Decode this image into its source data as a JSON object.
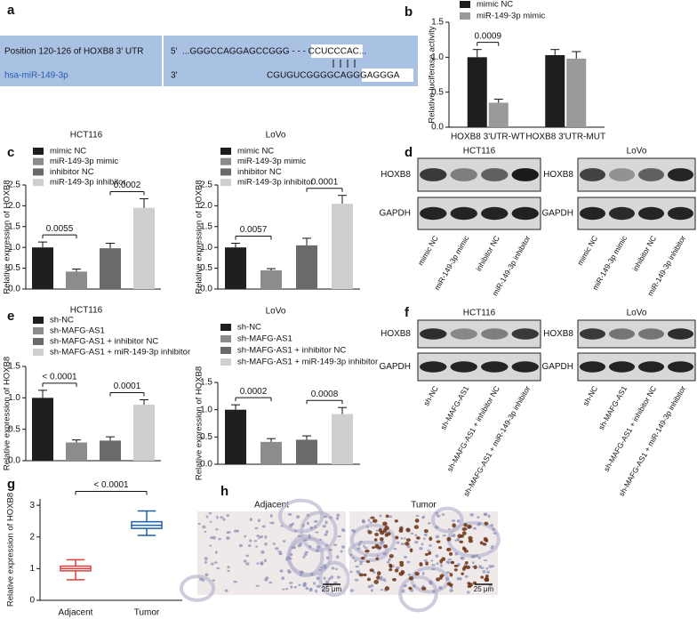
{
  "panel_a": {
    "label": "a",
    "position": "Position 120-126 of HOXB8 3' UTR",
    "mirna": "hsa-miR-149-3p",
    "five_prime": "5'",
    "three_prime": "3'",
    "target_seq": "...GGGCCAGGAGCCGGG - - - CCUCCCAC...",
    "mirna_seq": "CGUGUCGGGGCAGGGAGGGA"
  },
  "chart_data": [
    {
      "panel_label": "b",
      "type": "bar",
      "ylabel": "Relative luciferase activity",
      "categories": [
        "HOXB8 3'UTR-WT",
        "HOXB8 3'UTR-MUT"
      ],
      "series": [
        {
          "name": "mimic NC",
          "color": "#1e1e1e",
          "values": [
            1.0,
            1.03
          ],
          "errors": [
            0.11,
            0.08
          ]
        },
        {
          "name": "miR-149-3p mimic",
          "color": "#9a9a9a",
          "values": [
            0.35,
            0.98
          ],
          "errors": [
            0.05,
            0.1
          ]
        }
      ],
      "ylim": [
        0,
        1.5
      ],
      "yticks": [
        {
          "value": 0,
          "label": "0.0"
        },
        0.5,
        {
          "value": 1,
          "label": "1.0"
        },
        1.5
      ],
      "annotations": [
        "0.0009"
      ]
    },
    {
      "panel_label": "c",
      "type": "bar",
      "title": "HCT116",
      "ylabel": "Relative expression of HOXB8",
      "series": [
        {
          "name": "mimic NC",
          "color": "#1e1e1e",
          "values": [
            1.0
          ],
          "errors": [
            0.13
          ]
        },
        {
          "name": "miR-149-3p mimic",
          "color": "#8c8c8c",
          "values": [
            0.42
          ],
          "errors": [
            0.06
          ]
        },
        {
          "name": "inhibitor NC",
          "color": "#6a6a6a",
          "values": [
            0.98
          ],
          "errors": [
            0.12
          ]
        },
        {
          "name": "miR-149-3p inhibitor",
          "color": "#cfcfcf",
          "values": [
            1.95
          ],
          "errors": [
            0.22
          ]
        }
      ],
      "ylim": [
        0,
        2.5
      ],
      "yticks": [
        {
          "value": 0,
          "label": "0.0"
        },
        0.5,
        {
          "value": 1,
          "label": "1.0"
        },
        1.5,
        {
          "value": 2,
          "label": "2.0"
        },
        2.5
      ],
      "annotations": [
        "0.0055",
        "0.0002"
      ]
    },
    {
      "type": "bar",
      "title": "LoVo",
      "ylabel": "Relative expression of HOXB8",
      "series": [
        {
          "name": "mimic NC",
          "color": "#1e1e1e",
          "values": [
            1.0
          ],
          "errors": [
            0.1
          ]
        },
        {
          "name": "miR-149-3p mimic",
          "color": "#8c8c8c",
          "values": [
            0.45
          ],
          "errors": [
            0.04
          ]
        },
        {
          "name": "inhibitor NC",
          "color": "#6a6a6a",
          "values": [
            1.05
          ],
          "errors": [
            0.17
          ]
        },
        {
          "name": "miR-149-3p inhibitor",
          "color": "#cfcfcf",
          "values": [
            2.05
          ],
          "errors": [
            0.2
          ]
        }
      ],
      "ylim": [
        0,
        2.5
      ],
      "yticks": [
        {
          "value": 0,
          "label": "0.0"
        },
        0.5,
        {
          "value": 1,
          "label": "1.0"
        },
        1.5,
        {
          "value": 2,
          "label": "2.0"
        },
        2.5
      ],
      "annotations": [
        "0.0057",
        "0.0001"
      ]
    },
    {
      "panel_label": "e",
      "type": "bar",
      "title": "HCT116",
      "ylabel": "Relative expression of HOXB8",
      "series": [
        {
          "name": "sh-NC",
          "color": "#1e1e1e",
          "values": [
            1.0
          ],
          "errors": [
            0.12
          ]
        },
        {
          "name": "sh-MAFG-AS1",
          "color": "#8c8c8c",
          "values": [
            0.29
          ],
          "errors": [
            0.04
          ]
        },
        {
          "name": "sh-MAFG-AS1 + inhibitor NC",
          "color": "#6a6a6a",
          "values": [
            0.32
          ],
          "errors": [
            0.06
          ]
        },
        {
          "name": "sh-MAFG-AS1 + miR-149-3p inhibitor",
          "color": "#cfcfcf",
          "values": [
            0.89
          ],
          "errors": [
            0.08
          ]
        }
      ],
      "ylim": [
        0,
        1.5
      ],
      "yticks": [
        {
          "value": 0,
          "label": "0.0"
        },
        0.5,
        {
          "value": 1,
          "label": "1.0"
        },
        1.5
      ],
      "annotations": [
        "< 0.0001",
        "0.0001"
      ]
    },
    {
      "type": "bar",
      "title": "LoVo",
      "ylabel": "Relative expression of HOXB8",
      "series": [
        {
          "name": "sh-NC",
          "color": "#1e1e1e",
          "values": [
            1.0
          ],
          "errors": [
            0.09
          ]
        },
        {
          "name": "sh-MAFG-AS1",
          "color": "#8c8c8c",
          "values": [
            0.41
          ],
          "errors": [
            0.06
          ]
        },
        {
          "name": "sh-MAFG-AS1 + inhibitor NC",
          "color": "#6a6a6a",
          "values": [
            0.45
          ],
          "errors": [
            0.07
          ]
        },
        {
          "name": "sh-MAFG-AS1 + miR-149-3p inhibitor",
          "color": "#cfcfcf",
          "values": [
            0.92
          ],
          "errors": [
            0.12
          ]
        }
      ],
      "ylim": [
        0,
        1.5
      ],
      "yticks": [
        {
          "value": 0,
          "label": "0.0"
        },
        0.5,
        {
          "value": 1,
          "label": "1.0"
        },
        1.5
      ],
      "annotations": [
        "0.0002",
        "0.0008"
      ]
    },
    {
      "panel_label": "g",
      "type": "box",
      "ylabel": "Relative expression of HOXB8",
      "categories": [
        "Adjacent",
        "Tumor"
      ],
      "colors": [
        "#e0403a",
        "#1f5fa8"
      ],
      "boxes": [
        {
          "min": 0.65,
          "q1": 0.93,
          "median": 1.0,
          "q3": 1.08,
          "max": 1.28
        },
        {
          "min": 2.05,
          "q1": 2.27,
          "median": 2.37,
          "q3": 2.48,
          "max": 2.82
        }
      ],
      "ylim": [
        0,
        3.2
      ],
      "yticks": [
        0,
        1,
        2,
        3
      ],
      "annotations": [
        "< 0.0001"
      ]
    }
  ],
  "blots": [
    {
      "panel_label": "d",
      "groups": [
        {
          "title": "HCT116",
          "rows": [
            "HOXB8",
            "GAPDH"
          ],
          "lanes": [
            "mimic NC",
            "miR-149-3p mimic",
            "inhibitor NC",
            "miR-149-3p inhibitor"
          ]
        },
        {
          "title": "LoVo",
          "rows": [
            "HOXB8",
            "GAPDH"
          ],
          "lanes": [
            "mimic NC",
            "miR-149-3p mimic",
            "inhibitor NC",
            "miR-149-3p inhibitor"
          ]
        }
      ]
    },
    {
      "panel_label": "f",
      "groups": [
        {
          "title": "HCT116",
          "rows": [
            "HOXB8",
            "GAPDH"
          ],
          "lanes": [
            "sh-NC",
            "sh-MAFG-AS1",
            "sh-MAFG-AS1 + inhibitor NC",
            "sh-MAFG-AS1 + miR-149-3p inhibitor"
          ]
        },
        {
          "title": "LoVo",
          "rows": [
            "HOXB8",
            "GAPDH"
          ],
          "lanes": [
            "sh-NC",
            "sh-MAFG-AS1",
            "sh-MAFG-AS1 + inhibitor NC",
            "sh-MAFG-AS1 + miR-149-3p inhibitor"
          ]
        }
      ]
    }
  ],
  "histology": {
    "panel_label": "h",
    "images": [
      {
        "title": "Adjacent",
        "scale": "25 μm"
      },
      {
        "title": "Tumor",
        "scale": "25 μm"
      }
    ]
  }
}
